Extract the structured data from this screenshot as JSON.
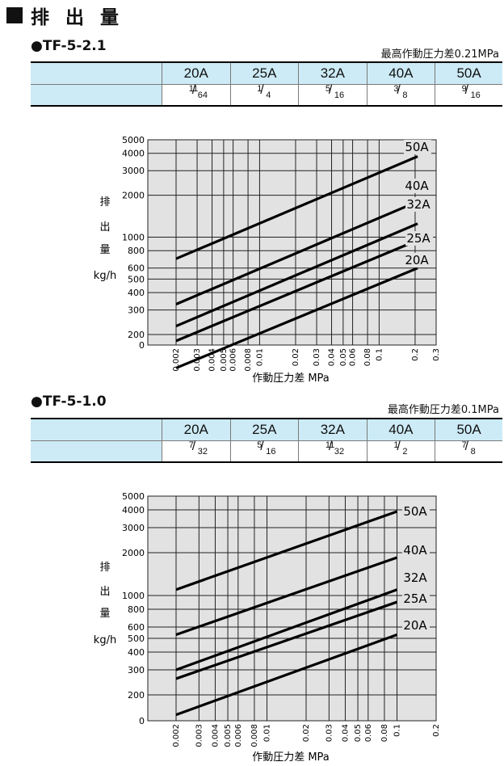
{
  "page_title": "排 出 量",
  "sections": [
    {
      "model": "TF-5-2.1",
      "pressure_note": "最高作動圧力差0.21MPa",
      "sizes": [
        {
          "size": "20A",
          "num": "11",
          "den": "64"
        },
        {
          "size": "25A",
          "num": "1",
          "den": "4"
        },
        {
          "size": "32A",
          "num": "5",
          "den": "16"
        },
        {
          "size": "40A",
          "num": "3",
          "den": "8"
        },
        {
          "size": "50A",
          "num": "9",
          "den": "16"
        }
      ]
    },
    {
      "model": "TF-5-1.0",
      "pressure_note": "最高作動圧力差0.1MPa",
      "sizes": [
        {
          "size": "20A",
          "num": "7",
          "den": "32"
        },
        {
          "size": "25A",
          "num": "5",
          "den": "16"
        },
        {
          "size": "32A",
          "num": "11",
          "den": "32"
        },
        {
          "size": "40A",
          "num": "1",
          "den": "2"
        },
        {
          "size": "50A",
          "num": "7",
          "den": "8"
        }
      ]
    }
  ],
  "chart_data": [
    {
      "type": "line",
      "title": "",
      "xlabel": "作動圧力差 MPa",
      "ylabel": [
        "排",
        "出",
        "量",
        "kg/h"
      ],
      "x_scale": "log",
      "y_scale": "log",
      "xlim": [
        0.002,
        0.3
      ],
      "ylim": [
        100,
        5000
      ],
      "y_bottom_label": "0",
      "x_ticks": [
        0.002,
        0.003,
        0.004,
        0.005,
        0.006,
        0.008,
        0.01,
        0.02,
        0.03,
        0.04,
        0.05,
        0.06,
        0.08,
        0.1,
        0.2,
        0.3
      ],
      "x_tick_labels": [
        "0.002",
        "0.003",
        "0.004",
        "0.005",
        "0.006",
        "0.008",
        "0.01",
        "0.02",
        "0.03",
        "0.04",
        "0.05",
        "0.06",
        "0.08",
        "0.1",
        "0.2",
        "0.3"
      ],
      "y_ticks": [
        200,
        300,
        400,
        500,
        600,
        800,
        1000,
        2000,
        3000,
        4000,
        5000
      ],
      "y_tick_labels": [
        "200",
        "300",
        "400",
        "500",
        "600",
        "800",
        "1000",
        "2000",
        "3000",
        "4000",
        "5000"
      ],
      "grid": true,
      "series": [
        {
          "name": "50A",
          "points": [
            [
              0.002,
              700
            ],
            [
              0.21,
              3800
            ]
          ]
        },
        {
          "name": "40A",
          "points": [
            [
              0.002,
              330
            ],
            [
              0.21,
              1800
            ]
          ]
        },
        {
          "name": "32A",
          "points": [
            [
              0.002,
              230
            ],
            [
              0.21,
              1250
            ]
          ]
        },
        {
          "name": "25A",
          "points": [
            [
              0.002,
              180
            ],
            [
              0.21,
              950
            ]
          ]
        },
        {
          "name": "20A",
          "points": [
            [
              0.002,
              115
            ],
            [
              0.21,
              600
            ]
          ]
        }
      ]
    },
    {
      "type": "line",
      "title": "",
      "xlabel": "作動圧力差 MPa",
      "ylabel": [
        "排",
        "出",
        "量",
        "kg/h"
      ],
      "x_scale": "log",
      "y_scale": "log",
      "xlim": [
        0.002,
        0.2
      ],
      "ylim": [
        100,
        5000
      ],
      "y_bottom_label": "0",
      "x_ticks": [
        0.002,
        0.003,
        0.004,
        0.005,
        0.006,
        0.008,
        0.01,
        0.02,
        0.03,
        0.04,
        0.05,
        0.06,
        0.08,
        0.1,
        0.2
      ],
      "x_tick_labels": [
        "0.002",
        "0.003",
        "0.004",
        "0.005",
        "0.006",
        "0.008",
        "0.01",
        "0.02",
        "0.03",
        "0.04",
        "0.05",
        "0.06",
        "0.08",
        "0.1",
        "0.2"
      ],
      "y_ticks": [
        200,
        300,
        400,
        500,
        600,
        800,
        1000,
        2000,
        3000,
        4000,
        5000
      ],
      "y_tick_labels": [
        "200",
        "300",
        "400",
        "500",
        "600",
        "800",
        "1000",
        "2000",
        "3000",
        "4000",
        "5000"
      ],
      "grid": true,
      "series": [
        {
          "name": "50A",
          "points": [
            [
              0.002,
              1100
            ],
            [
              0.1,
              3900
            ]
          ]
        },
        {
          "name": "40A",
          "points": [
            [
              0.002,
              530
            ],
            [
              0.1,
              1850
            ]
          ]
        },
        {
          "name": "32A",
          "points": [
            [
              0.002,
              300
            ],
            [
              0.1,
              1100
            ]
          ]
        },
        {
          "name": "25A",
          "points": [
            [
              0.002,
              260
            ],
            [
              0.1,
              900
            ]
          ]
        },
        {
          "name": "20A",
          "points": [
            [
              0.002,
              145
            ],
            [
              0.1,
              530
            ]
          ]
        }
      ]
    }
  ]
}
